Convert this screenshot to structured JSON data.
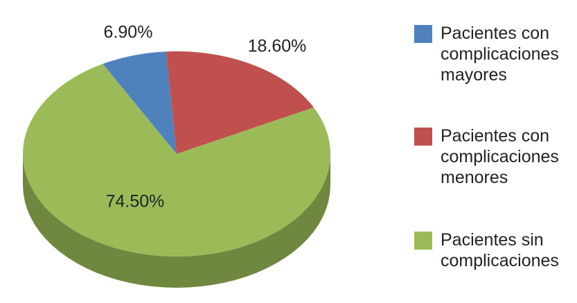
{
  "chart_data": {
    "type": "pie",
    "series": [
      {
        "name": "Pacientes con complicaciones mayores",
        "color": "#4f81bd",
        "values": [
          6.9
        ],
        "value_labels": [
          "6.90%"
        ]
      },
      {
        "name": "Pacientes con complicaciones menores",
        "color": "#c0504d",
        "values": [
          18.6
        ],
        "value_labels": [
          "18.60%"
        ]
      },
      {
        "name": "Pacientes sin complicaciones",
        "color": "#9bbb59",
        "values": [
          74.5
        ],
        "value_labels": [
          "74.50%"
        ]
      }
    ]
  }
}
